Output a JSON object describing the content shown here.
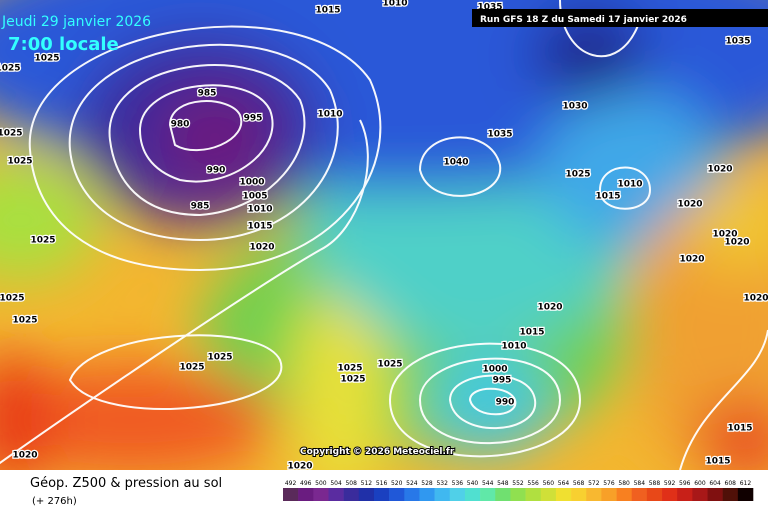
{
  "header": {
    "date": "Jeudi 29 janvier 2026",
    "time": "7:00 locale",
    "run": "Run GFS 18 Z du Samedi 17 janvier 2026"
  },
  "footer": {
    "copyright": "Copyright © 2026 Meteociel.fr",
    "title": "Géop. Z500 & pression au sol",
    "lead": "(+ 276h)"
  },
  "isobars": [
    "1015",
    "1010",
    "1035",
    "1025",
    "1025",
    "1025",
    "1025",
    "985",
    "980",
    "995",
    "1010",
    "990",
    "1000",
    "1005",
    "1010",
    "985",
    "1015",
    "1020",
    "1025",
    "1025",
    "1025",
    "1025",
    "1025",
    "1025",
    "1025",
    "1025",
    "1020",
    "1020",
    "1035",
    "1030",
    "1035",
    "1040",
    "1025",
    "1010",
    "1015",
    "1020",
    "1020",
    "1020",
    "1020",
    "1020",
    "1020",
    "1015",
    "1010",
    "1000",
    "995",
    "990",
    "1020",
    "1015",
    "1015"
  ],
  "legend": {
    "labels": [
      "492",
      "496",
      "500",
      "504",
      "508",
      "512",
      "516",
      "520",
      "524",
      "528",
      "532",
      "536",
      "540",
      "544",
      "548",
      "552",
      "556",
      "560",
      "564",
      "568",
      "572",
      "576",
      "580",
      "584",
      "588",
      "592",
      "596",
      "600",
      "604",
      "608",
      "612"
    ],
    "colors": [
      "#5a2a5a",
      "#6a1c80",
      "#7a2890",
      "#5a2ca0",
      "#3a2c9c",
      "#2030a8",
      "#1a40c0",
      "#2058d8",
      "#2878e8",
      "#3098f0",
      "#40b8f0",
      "#50d0e8",
      "#50e0d0",
      "#60e8a8",
      "#70e070",
      "#90e050",
      "#b0e040",
      "#d0e038",
      "#f0e030",
      "#f8d030",
      "#f8b830",
      "#f8a028",
      "#f88020",
      "#f06020",
      "#e84818",
      "#e03018",
      "#c82018",
      "#a81818",
      "#801010",
      "#501008",
      "#100000"
    ]
  }
}
